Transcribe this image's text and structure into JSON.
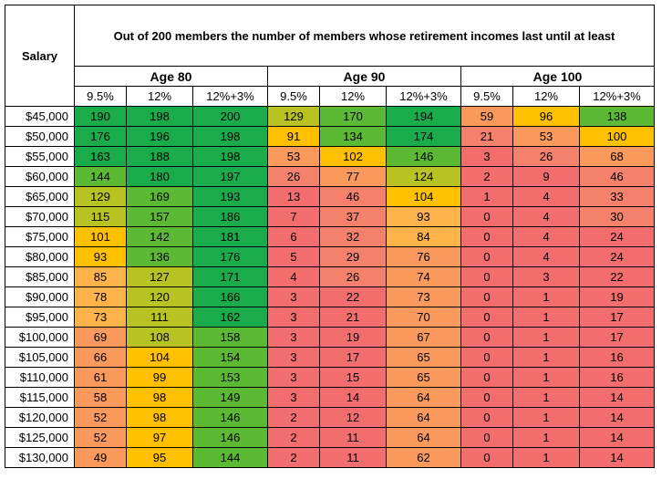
{
  "table": {
    "salary_header": "Salary",
    "title": "Out of 200 members the number of members whose retirement incomes last until at least",
    "groups": [
      "Age 80",
      "Age 90",
      "Age 100"
    ],
    "subheaders": [
      "9.5%",
      "12%",
      "12%+3%"
    ],
    "colors": {
      "dark_green": "#1aab4b",
      "green": "#5cb934",
      "yellow_green": "#b8c323",
      "yellow": "#ffc000",
      "orange": "#fdb24a",
      "deep_orange": "#f9995c",
      "salmon": "#f4816c",
      "red": "#f26d6d"
    },
    "rows": [
      {
        "salary": "$45,000",
        "values": [
          190,
          198,
          200,
          129,
          170,
          194,
          59,
          96,
          138
        ],
        "fills": [
          "dark_green",
          "dark_green",
          "dark_green",
          "yellow_green",
          "green",
          "dark_green",
          "deep_orange",
          "yellow",
          "green"
        ]
      },
      {
        "salary": "$50,000",
        "values": [
          176,
          196,
          198,
          91,
          134,
          174,
          21,
          53,
          100
        ],
        "fills": [
          "dark_green",
          "dark_green",
          "dark_green",
          "yellow",
          "green",
          "dark_green",
          "salmon",
          "deep_orange",
          "yellow"
        ]
      },
      {
        "salary": "$55,000",
        "values": [
          163,
          188,
          198,
          53,
          102,
          146,
          3,
          26,
          68
        ],
        "fills": [
          "dark_green",
          "dark_green",
          "dark_green",
          "deep_orange",
          "yellow",
          "green",
          "red",
          "salmon",
          "deep_orange"
        ]
      },
      {
        "salary": "$60,000",
        "values": [
          144,
          180,
          197,
          26,
          77,
          124,
          2,
          9,
          46
        ],
        "fills": [
          "green",
          "dark_green",
          "dark_green",
          "salmon",
          "deep_orange",
          "yellow_green",
          "red",
          "red",
          "salmon"
        ]
      },
      {
        "salary": "$65,000",
        "values": [
          129,
          169,
          193,
          13,
          46,
          104,
          1,
          4,
          33
        ],
        "fills": [
          "yellow_green",
          "green",
          "dark_green",
          "red",
          "salmon",
          "yellow",
          "red",
          "red",
          "salmon"
        ]
      },
      {
        "salary": "$70,000",
        "values": [
          115,
          157,
          186,
          7,
          37,
          93,
          0,
          4,
          30
        ],
        "fills": [
          "yellow_green",
          "green",
          "dark_green",
          "red",
          "salmon",
          "orange",
          "red",
          "red",
          "salmon"
        ]
      },
      {
        "salary": "$75,000",
        "values": [
          101,
          142,
          181,
          6,
          32,
          84,
          0,
          4,
          24
        ],
        "fills": [
          "yellow",
          "green",
          "dark_green",
          "red",
          "salmon",
          "orange",
          "red",
          "red",
          "red"
        ]
      },
      {
        "salary": "$80,000",
        "values": [
          93,
          136,
          176,
          5,
          29,
          76,
          0,
          4,
          24
        ],
        "fills": [
          "yellow",
          "green",
          "dark_green",
          "red",
          "salmon",
          "deep_orange",
          "red",
          "red",
          "red"
        ]
      },
      {
        "salary": "$85,000",
        "values": [
          85,
          127,
          171,
          4,
          26,
          74,
          0,
          3,
          22
        ],
        "fills": [
          "orange",
          "yellow_green",
          "dark_green",
          "red",
          "salmon",
          "deep_orange",
          "red",
          "red",
          "red"
        ]
      },
      {
        "salary": "$90,000",
        "values": [
          78,
          120,
          166,
          3,
          22,
          73,
          0,
          1,
          19
        ],
        "fills": [
          "orange",
          "yellow_green",
          "dark_green",
          "red",
          "red",
          "deep_orange",
          "red",
          "red",
          "red"
        ]
      },
      {
        "salary": "$95,000",
        "values": [
          73,
          111,
          162,
          3,
          21,
          70,
          0,
          1,
          17
        ],
        "fills": [
          "orange",
          "yellow_green",
          "dark_green",
          "red",
          "red",
          "deep_orange",
          "red",
          "red",
          "red"
        ]
      },
      {
        "salary": "$100,000",
        "values": [
          69,
          108,
          158,
          3,
          19,
          67,
          0,
          1,
          17
        ],
        "fills": [
          "deep_orange",
          "yellow_green",
          "green",
          "red",
          "red",
          "deep_orange",
          "red",
          "red",
          "red"
        ]
      },
      {
        "salary": "$105,000",
        "values": [
          66,
          104,
          154,
          3,
          17,
          65,
          0,
          1,
          16
        ],
        "fills": [
          "deep_orange",
          "yellow",
          "green",
          "red",
          "red",
          "deep_orange",
          "red",
          "red",
          "red"
        ]
      },
      {
        "salary": "$110,000",
        "values": [
          61,
          99,
          153,
          3,
          15,
          65,
          0,
          1,
          16
        ],
        "fills": [
          "deep_orange",
          "yellow",
          "green",
          "red",
          "red",
          "deep_orange",
          "red",
          "red",
          "red"
        ]
      },
      {
        "salary": "$115,000",
        "values": [
          58,
          98,
          149,
          3,
          14,
          64,
          0,
          1,
          14
        ],
        "fills": [
          "deep_orange",
          "yellow",
          "green",
          "red",
          "red",
          "deep_orange",
          "red",
          "red",
          "red"
        ]
      },
      {
        "salary": "$120,000",
        "values": [
          52,
          98,
          146,
          2,
          12,
          64,
          0,
          1,
          14
        ],
        "fills": [
          "deep_orange",
          "yellow",
          "green",
          "red",
          "red",
          "deep_orange",
          "red",
          "red",
          "red"
        ]
      },
      {
        "salary": "$125,000",
        "values": [
          52,
          97,
          146,
          2,
          11,
          64,
          0,
          1,
          14
        ],
        "fills": [
          "deep_orange",
          "yellow",
          "green",
          "red",
          "red",
          "deep_orange",
          "red",
          "red",
          "red"
        ]
      },
      {
        "salary": "$130,000",
        "values": [
          49,
          95,
          144,
          2,
          11,
          62,
          0,
          1,
          14
        ],
        "fills": [
          "deep_orange",
          "yellow",
          "green",
          "red",
          "red",
          "deep_orange",
          "red",
          "red",
          "red"
        ]
      }
    ]
  }
}
